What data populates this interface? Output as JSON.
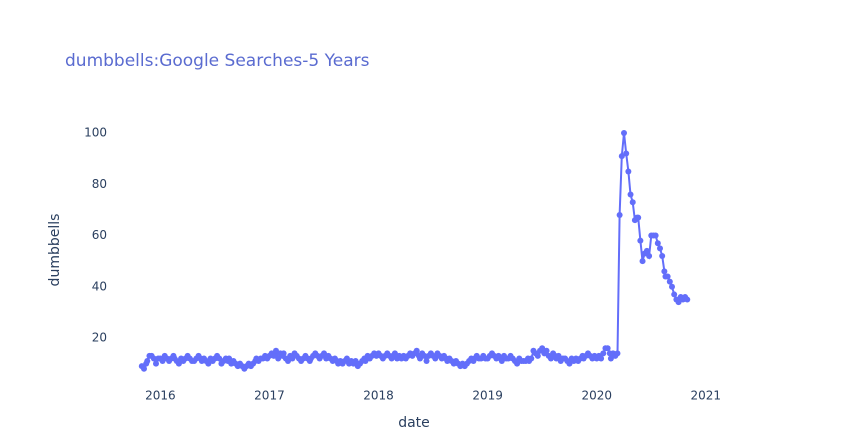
{
  "chart_data": {
    "type": "line",
    "title": "dumbbells:Google Searches-5 Years",
    "x_label": "date",
    "y_label": "dumbbells",
    "color": "#636efa",
    "markers": true,
    "grid": false,
    "xlim": [
      2015.63,
      2021.79
    ],
    "xticks": [
      2016,
      2017,
      2018,
      2019,
      2020,
      2021
    ],
    "ylim": [
      3.6,
      112.9
    ],
    "yticks": [
      20,
      40,
      60,
      80,
      100
    ],
    "x": [
      2015.83,
      2015.85,
      2015.87,
      2015.88,
      2015.9,
      2015.92,
      2015.94,
      2015.96,
      2015.98,
      2016.0,
      2016.02,
      2016.04,
      2016.06,
      2016.08,
      2016.1,
      2016.12,
      2016.13,
      2016.15,
      2016.17,
      2016.19,
      2016.21,
      2016.23,
      2016.25,
      2016.27,
      2016.29,
      2016.31,
      2016.33,
      2016.35,
      2016.37,
      2016.38,
      2016.4,
      2016.42,
      2016.44,
      2016.46,
      2016.48,
      2016.5,
      2016.52,
      2016.54,
      2016.56,
      2016.58,
      2016.6,
      2016.62,
      2016.63,
      2016.65,
      2016.67,
      2016.69,
      2016.71,
      2016.73,
      2016.75,
      2016.77,
      2016.79,
      2016.81,
      2016.83,
      2016.85,
      2016.87,
      2016.88,
      2016.9,
      2016.92,
      2016.94,
      2016.96,
      2016.98,
      2017.0,
      2017.02,
      2017.04,
      2017.06,
      2017.08,
      2017.1,
      2017.12,
      2017.13,
      2017.15,
      2017.17,
      2017.19,
      2017.21,
      2017.23,
      2017.25,
      2017.27,
      2017.29,
      2017.31,
      2017.33,
      2017.35,
      2017.37,
      2017.38,
      2017.4,
      2017.42,
      2017.44,
      2017.46,
      2017.48,
      2017.5,
      2017.52,
      2017.54,
      2017.56,
      2017.58,
      2017.6,
      2017.62,
      2017.63,
      2017.65,
      2017.67,
      2017.69,
      2017.71,
      2017.73,
      2017.75,
      2017.77,
      2017.79,
      2017.81,
      2017.83,
      2017.85,
      2017.87,
      2017.88,
      2017.9,
      2017.92,
      2017.94,
      2017.96,
      2017.98,
      2018.0,
      2018.02,
      2018.04,
      2018.06,
      2018.08,
      2018.1,
      2018.12,
      2018.13,
      2018.15,
      2018.17,
      2018.19,
      2018.21,
      2018.23,
      2018.25,
      2018.27,
      2018.29,
      2018.31,
      2018.33,
      2018.35,
      2018.37,
      2018.38,
      2018.4,
      2018.42,
      2018.44,
      2018.46,
      2018.48,
      2018.5,
      2018.52,
      2018.54,
      2018.56,
      2018.58,
      2018.6,
      2018.62,
      2018.63,
      2018.65,
      2018.67,
      2018.69,
      2018.71,
      2018.73,
      2018.75,
      2018.77,
      2018.79,
      2018.81,
      2018.83,
      2018.85,
      2018.87,
      2018.88,
      2018.9,
      2018.92,
      2018.94,
      2018.96,
      2018.98,
      2019.0,
      2019.02,
      2019.04,
      2019.06,
      2019.08,
      2019.1,
      2019.12,
      2019.13,
      2019.15,
      2019.17,
      2019.19,
      2019.21,
      2019.23,
      2019.25,
      2019.27,
      2019.29,
      2019.31,
      2019.33,
      2019.35,
      2019.37,
      2019.38,
      2019.4,
      2019.42,
      2019.44,
      2019.46,
      2019.48,
      2019.5,
      2019.52,
      2019.54,
      2019.56,
      2019.58,
      2019.6,
      2019.62,
      2019.63,
      2019.65,
      2019.67,
      2019.69,
      2019.71,
      2019.73,
      2019.75,
      2019.77,
      2019.79,
      2019.81,
      2019.83,
      2019.85,
      2019.87,
      2019.88,
      2019.9,
      2019.92,
      2019.94,
      2019.96,
      2019.98,
      2020.0,
      2020.02,
      2020.04,
      2020.06,
      2020.08,
      2020.1,
      2020.12,
      2020.13,
      2020.15,
      2020.17,
      2020.19,
      2020.21,
      2020.23,
      2020.25,
      2020.27,
      2020.29,
      2020.31,
      2020.33,
      2020.35,
      2020.37,
      2020.38,
      2020.4,
      2020.42,
      2020.44,
      2020.46,
      2020.48,
      2020.5,
      2020.52,
      2020.54,
      2020.56,
      2020.58,
      2020.6,
      2020.62,
      2020.63,
      2020.65,
      2020.67,
      2020.69,
      2020.71,
      2020.73,
      2020.75,
      2020.77,
      2020.79,
      2020.81,
      2020.83
    ],
    "values": [
      9,
      8,
      10,
      11,
      13,
      13,
      12,
      10,
      12,
      12,
      11,
      13,
      12,
      11,
      12,
      13,
      12,
      11,
      10,
      12,
      11,
      12,
      13,
      12,
      11,
      11,
      12,
      13,
      12,
      11,
      12,
      11,
      10,
      12,
      11,
      12,
      13,
      12,
      10,
      11,
      12,
      11,
      12,
      10,
      11,
      10,
      9,
      10,
      9,
      8,
      9,
      10,
      9,
      10,
      11,
      12,
      11,
      12,
      12,
      13,
      12,
      13,
      14,
      13,
      15,
      12,
      14,
      13,
      14,
      12,
      11,
      13,
      12,
      14,
      13,
      12,
      11,
      12,
      13,
      12,
      11,
      12,
      13,
      14,
      13,
      12,
      13,
      14,
      12,
      13,
      12,
      11,
      12,
      11,
      10,
      11,
      10,
      11,
      12,
      10,
      11,
      10,
      11,
      9,
      10,
      11,
      12,
      11,
      13,
      12,
      13,
      14,
      13,
      14,
      13,
      12,
      13,
      14,
      13,
      12,
      13,
      14,
      12,
      13,
      12,
      13,
      12,
      13,
      14,
      13,
      14,
      15,
      13,
      12,
      14,
      13,
      11,
      13,
      14,
      13,
      12,
      14,
      13,
      12,
      13,
      12,
      11,
      12,
      11,
      10,
      11,
      10,
      9,
      10,
      9,
      10,
      11,
      12,
      11,
      12,
      13,
      12,
      12,
      13,
      12,
      12,
      13,
      14,
      13,
      12,
      13,
      12,
      11,
      13,
      12,
      12,
      13,
      12,
      11,
      10,
      12,
      11,
      11,
      11,
      12,
      11,
      12,
      15,
      14,
      13,
      15,
      16,
      14,
      15,
      13,
      12,
      14,
      13,
      12,
      13,
      11,
      12,
      12,
      11,
      10,
      12,
      11,
      12,
      11,
      12,
      13,
      12,
      13,
      14,
      13,
      12,
      13,
      12,
      13,
      12,
      14,
      16,
      16,
      14,
      12,
      14,
      13,
      14,
      68,
      91,
      100,
      92,
      85,
      76,
      73,
      66,
      67,
      67,
      58,
      50,
      53,
      54,
      52,
      60,
      60,
      60,
      57,
      55,
      52,
      46,
      44,
      44,
      42,
      40,
      37,
      35,
      34,
      36,
      35,
      36,
      35
    ]
  }
}
